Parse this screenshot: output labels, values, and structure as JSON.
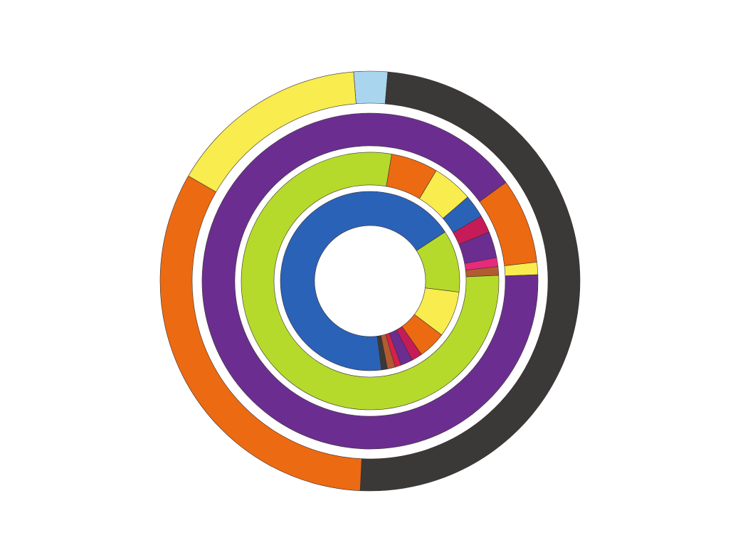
{
  "chart_data": {
    "type": "donut",
    "rings": [
      {
        "colors": [
          "#a9d5ee",
          "#3b3838",
          "#ec6a12",
          "#f8ec4e"
        ],
        "values": [
          2.6,
          49.4,
          32.6,
          15.4
        ]
      },
      {
        "colors": [
          "#ec6a12",
          "#f8ec4e",
          "#6b2e90"
        ],
        "values": [
          8.2,
          1.2,
          90.6
        ]
      },
      {
        "colors": [
          "#ec6a12",
          "#f8ec4e",
          "#2a62b8",
          "#c51b58",
          "#6b2e90",
          "#e82a7c",
          "#b25a32",
          "#b5da2c"
        ],
        "values": [
          5.9,
          5.1,
          2.9,
          2.2,
          3.3,
          1.1,
          1.1,
          78.4
        ]
      },
      {
        "colors": [
          "#b5da2c",
          "#f8ec4e",
          "#ec6a12",
          "#c51b58",
          "#6b2e90",
          "#d8204a",
          "#b25a32",
          "#3b3838",
          "#2a62b8"
        ],
        "values": [
          11.2,
          8.3,
          5.0,
          1.9,
          2.2,
          1.1,
          1.4,
          1.1,
          67.8
        ]
      }
    ]
  }
}
